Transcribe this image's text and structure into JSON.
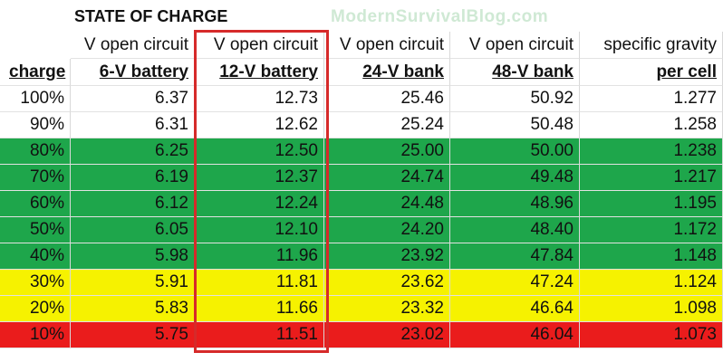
{
  "header": {
    "title": "STATE OF CHARGE",
    "watermark": "ModernSurvivalBlog.com"
  },
  "table": {
    "subheaders": [
      "V open circuit",
      "V open circuit",
      "V open circuit",
      "V open circuit",
      "specific gravity"
    ],
    "headers": [
      "charge",
      "6-V battery",
      "12-V battery",
      "24-V bank",
      "48-V bank",
      "per cell"
    ],
    "rows": [
      {
        "color": "#ffffff",
        "cells": [
          "100%",
          "6.37",
          "12.73",
          "25.46",
          "50.92",
          "1.277"
        ]
      },
      {
        "color": "#ffffff",
        "cells": [
          "90%",
          "6.31",
          "12.62",
          "25.24",
          "50.48",
          "1.258"
        ]
      },
      {
        "color": "#1ea64b",
        "cells": [
          "80%",
          "6.25",
          "12.50",
          "25.00",
          "50.00",
          "1.238"
        ]
      },
      {
        "color": "#1ea64b",
        "cells": [
          "70%",
          "6.19",
          "12.37",
          "24.74",
          "49.48",
          "1.217"
        ]
      },
      {
        "color": "#1ea64b",
        "cells": [
          "60%",
          "6.12",
          "12.24",
          "24.48",
          "48.96",
          "1.195"
        ]
      },
      {
        "color": "#1ea64b",
        "cells": [
          "50%",
          "6.05",
          "12.10",
          "24.20",
          "48.40",
          "1.172"
        ]
      },
      {
        "color": "#1ea64b",
        "cells": [
          "40%",
          "5.98",
          "11.96",
          "23.92",
          "47.84",
          "1.148"
        ]
      },
      {
        "color": "#f6f200",
        "cells": [
          "30%",
          "5.91",
          "11.81",
          "23.62",
          "47.24",
          "1.124"
        ]
      },
      {
        "color": "#f6f200",
        "cells": [
          "20%",
          "5.83",
          "11.66",
          "23.32",
          "46.64",
          "1.098"
        ]
      },
      {
        "color": "#ea1c1c",
        "cells": [
          "10%",
          "5.75",
          "11.51",
          "23.02",
          "46.04",
          "1.073"
        ]
      }
    ]
  }
}
